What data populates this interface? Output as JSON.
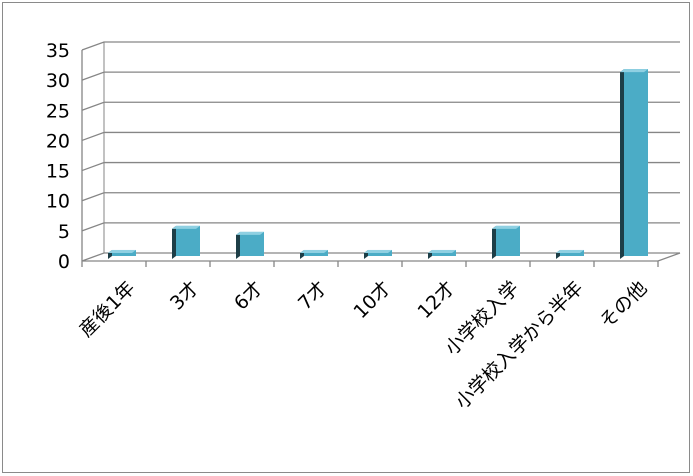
{
  "chart_data": {
    "type": "bar",
    "style": "3d-column",
    "categories": [
      "産後1年",
      "3才",
      "6才",
      "7才",
      "10才",
      "12才",
      "小学校入学",
      "小学校入学から半年",
      "その他"
    ],
    "values": [
      1,
      5,
      4,
      1,
      1,
      1,
      5,
      1,
      31
    ],
    "ylim": [
      0,
      35
    ],
    "yticks": [
      0,
      5,
      10,
      15,
      20,
      25,
      30,
      35
    ],
    "grid": true,
    "legend": "none",
    "title": "",
    "xlabel": "",
    "ylabel": "",
    "colors": {
      "bar_front": "#4bacc6",
      "bar_top": "#8fd0e2",
      "bar_side": "#1d3e47",
      "gridline": "#868686",
      "axis": "#868686"
    }
  }
}
